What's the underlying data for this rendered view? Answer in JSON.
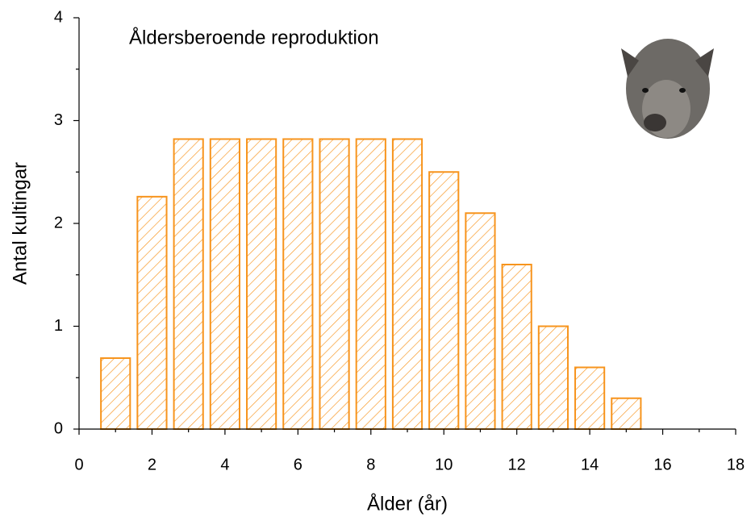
{
  "chart_data": {
    "type": "bar",
    "title": "Åldersberoende reproduktion",
    "x_label": "Ålder (år)",
    "y_label": "Antal kultingar",
    "x": [
      1,
      2,
      3,
      4,
      5,
      6,
      7,
      8,
      9,
      10,
      11,
      12,
      13,
      14,
      15
    ],
    "values": [
      0.69,
      2.26,
      2.82,
      2.82,
      2.82,
      2.82,
      2.82,
      2.82,
      2.82,
      2.5,
      2.1,
      1.6,
      1.0,
      0.6,
      0.3
    ],
    "color": "#f7941d",
    "hatch": true,
    "xlim": [
      0,
      18
    ],
    "xticks": [
      0,
      2,
      4,
      6,
      8,
      10,
      12,
      14,
      16,
      18
    ],
    "xminorticks": [
      1,
      3,
      5,
      7,
      9,
      11,
      13,
      15,
      17
    ],
    "ylim": [
      0,
      4
    ],
    "yticks": [
      0,
      1,
      2,
      3,
      4
    ],
    "yminorticks": [
      0.5,
      1.5,
      2.5,
      3.5
    ],
    "grid": false
  }
}
